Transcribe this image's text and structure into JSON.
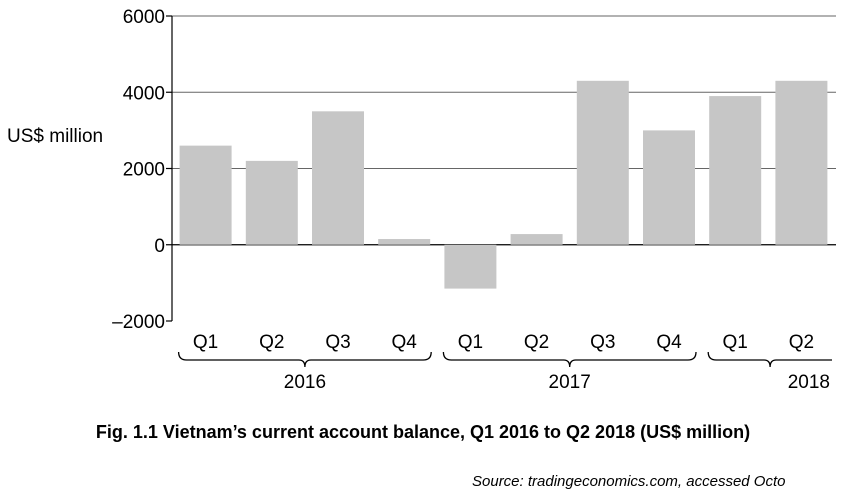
{
  "chart_data": {
    "type": "bar",
    "title": "Fig. 1.1 Vietnam’s current account balance, Q1 2016 to Q2 2018 (US$ million)",
    "ylabel": "US$ million",
    "ylim": [
      -2000,
      6000
    ],
    "yticks": [
      6000,
      4000,
      2000,
      0,
      -2000
    ],
    "ytick_labels": [
      "6000",
      "4000",
      "2000",
      "0",
      "–2000"
    ],
    "grid": true,
    "categories": [
      "Q1",
      "Q2",
      "Q3",
      "Q4",
      "Q1",
      "Q2",
      "Q3",
      "Q4",
      "Q1",
      "Q2"
    ],
    "values": [
      2600,
      2200,
      3500,
      150,
      -1150,
      280,
      4300,
      3000,
      3900,
      4300
    ],
    "groups": [
      {
        "label": "2016",
        "count": 4
      },
      {
        "label": "2017",
        "count": 4
      },
      {
        "label": "2018",
        "count": 2
      }
    ],
    "bar_color": "#c6c6c6",
    "source": "Source: tradingeconomics.com, accessed Octo"
  }
}
